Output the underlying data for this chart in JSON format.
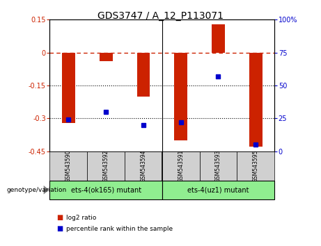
{
  "title": "GDS3747 / A_12_P113071",
  "categories": [
    "GSM543590",
    "GSM543592",
    "GSM543594",
    "GSM543591",
    "GSM543593",
    "GSM543595"
  ],
  "log2_ratio": [
    -0.32,
    -0.04,
    -0.2,
    -0.4,
    0.13,
    -0.43
  ],
  "percentile_rank": [
    24,
    30,
    20,
    22,
    57,
    5
  ],
  "ylim_left": [
    -0.45,
    0.15
  ],
  "ylim_right": [
    0,
    100
  ],
  "yticks_left": [
    0.15,
    0,
    -0.15,
    -0.3,
    -0.45
  ],
  "yticks_right": [
    100,
    75,
    50,
    25,
    0
  ],
  "bar_color": "#cc2200",
  "dot_color": "#0000cc",
  "hline_color": "#cc2200",
  "dotted_line_color": "#000000",
  "groups": [
    {
      "label": "ets-4(ok165) mutant",
      "indices": [
        0,
        1,
        2
      ],
      "color": "#90ee90"
    },
    {
      "label": "ets-4(uz1) mutant",
      "indices": [
        3,
        4,
        5
      ],
      "color": "#90ee90"
    }
  ],
  "genotype_label": "genotype/variation",
  "legend_items": [
    {
      "label": "log2 ratio",
      "color": "#cc2200"
    },
    {
      "label": "percentile rank within the sample",
      "color": "#0000cc"
    }
  ],
  "bar_width": 0.35,
  "title_fontsize": 10,
  "tick_fontsize": 7,
  "label_fontsize": 7,
  "cat_fontsize": 5.5,
  "group_fontsize": 7
}
